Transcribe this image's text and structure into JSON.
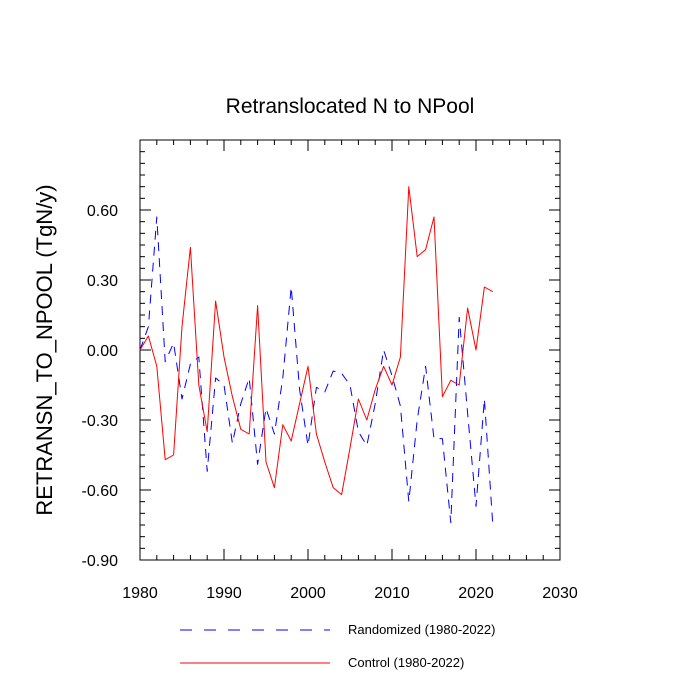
{
  "chart_data": {
    "type": "line",
    "title": "Retranslocated N to NPool",
    "xlabel": "",
    "ylabel": "RETRANSN_TO_NPOOL  (TgN/y)",
    "xlim": [
      1980,
      2030
    ],
    "ylim": [
      -0.9,
      0.9
    ],
    "x_ticks": [
      1980,
      1990,
      2000,
      2010,
      2020,
      2030
    ],
    "x_tick_labels": [
      "1980",
      "1990",
      "2000",
      "2010",
      "2020",
      "2030"
    ],
    "y_ticks": [
      -0.9,
      -0.6,
      -0.3,
      0.0,
      0.3,
      0.6
    ],
    "y_tick_labels": [
      "-0.90",
      "-0.60",
      "-0.30",
      "0.00",
      "0.30",
      "0.60"
    ],
    "x": [
      1980,
      1981,
      1982,
      1983,
      1984,
      1985,
      1986,
      1987,
      1988,
      1989,
      1990,
      1991,
      1992,
      1993,
      1994,
      1995,
      1996,
      1997,
      1998,
      1999,
      2000,
      2001,
      2002,
      2003,
      2004,
      2005,
      2006,
      2007,
      2008,
      2009,
      2010,
      2011,
      2012,
      2013,
      2014,
      2015,
      2016,
      2017,
      2018,
      2019,
      2020,
      2021,
      2022
    ],
    "series": [
      {
        "name": "Randomized (1980-2022)",
        "color": "#0000ff",
        "style": "dashed",
        "values": [
          0.0,
          0.1,
          0.57,
          -0.05,
          0.03,
          -0.21,
          -0.06,
          -0.03,
          -0.52,
          -0.12,
          -0.15,
          -0.4,
          -0.23,
          -0.12,
          -0.49,
          -0.25,
          -0.36,
          -0.12,
          0.27,
          -0.17,
          -0.41,
          -0.16,
          -0.18,
          -0.09,
          -0.1,
          -0.15,
          -0.35,
          -0.41,
          -0.23,
          0.0,
          -0.11,
          -0.24,
          -0.65,
          -0.3,
          -0.07,
          -0.38,
          -0.38,
          -0.74,
          0.14,
          -0.27,
          -0.67,
          -0.21,
          -0.75
        ]
      },
      {
        "name": "Control (1980-2022)",
        "color": "#ff0000",
        "style": "solid",
        "values": [
          0.0,
          0.06,
          -0.07,
          -0.47,
          -0.45,
          0.1,
          0.44,
          -0.15,
          -0.35,
          0.21,
          -0.03,
          -0.2,
          -0.34,
          -0.36,
          0.19,
          -0.48,
          -0.59,
          -0.32,
          -0.39,
          -0.23,
          -0.07,
          -0.36,
          -0.48,
          -0.59,
          -0.62,
          -0.42,
          -0.21,
          -0.3,
          -0.17,
          -0.07,
          -0.15,
          -0.03,
          0.7,
          0.4,
          0.43,
          0.57,
          -0.2,
          -0.13,
          -0.15,
          0.18,
          0.0,
          0.27,
          0.25
        ]
      }
    ]
  }
}
